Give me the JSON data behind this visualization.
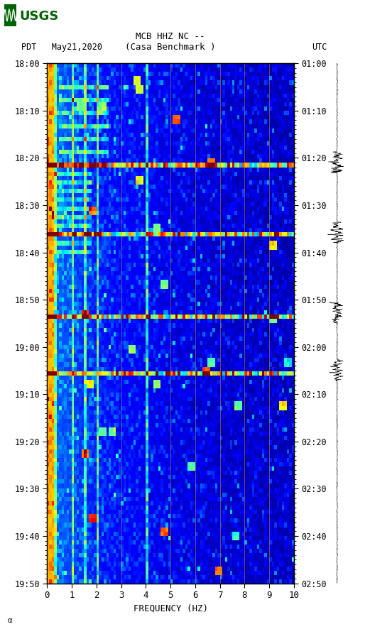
{
  "title_line1": "MCB HHZ NC --",
  "title_line2": "(Casa Benchmark )",
  "date_label": "PDT   May21,2020",
  "utc_label": "UTC",
  "xlabel": "FREQUENCY (HZ)",
  "freq_min": 0,
  "freq_max": 10,
  "left_time_labels_pdt": [
    "18:00",
    "18:10",
    "18:20",
    "18:30",
    "18:40",
    "18:50",
    "19:00",
    "19:10",
    "19:20",
    "19:30",
    "19:40",
    "19:50"
  ],
  "right_time_labels_utc": [
    "01:00",
    "01:10",
    "01:20",
    "01:30",
    "01:40",
    "01:50",
    "02:00",
    "02:10",
    "02:20",
    "02:30",
    "02:40",
    "02:50"
  ],
  "freq_ticks": [
    0,
    1,
    2,
    3,
    4,
    5,
    6,
    7,
    8,
    9,
    10
  ],
  "bg_color": "#ffffff",
  "spectrogram_cmap": "jet",
  "usgs_color": "#006400",
  "seed": 42,
  "n_time": 120,
  "n_freq": 100,
  "waveform_amplitude": 0.4,
  "bright_rows": [
    23,
    39,
    58,
    71
  ],
  "annotation": "α"
}
